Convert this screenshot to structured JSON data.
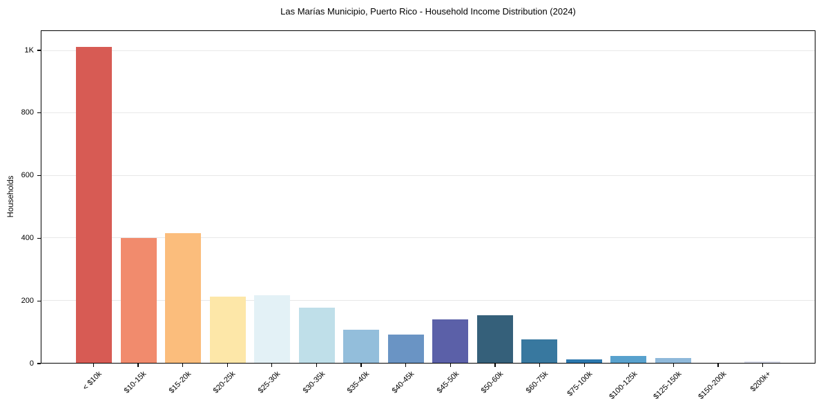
{
  "chart_data": {
    "type": "bar",
    "title": "Las Marías Municipio, Puerto Rico - Household Income Distribution (2024)",
    "xlabel": "",
    "ylabel": "Households",
    "categories": [
      "< $10k",
      "$10-15k",
      "$15-20k",
      "$20-25k",
      "$25-30k",
      "$30-35k",
      "$35-40k",
      "$40-45k",
      "$45-50k",
      "$50-60k",
      "$60-75k",
      "$75-100k",
      "$100-125k",
      "$125-150k",
      "$150-200k",
      "$200k+"
    ],
    "values": [
      1013,
      400,
      417,
      213,
      216,
      176,
      107,
      90,
      140,
      152,
      75,
      10,
      23,
      15,
      0,
      5
    ],
    "bar_colors": [
      "#d75b54",
      "#f18b6d",
      "#fbbd7c",
      "#fde7a8",
      "#e3f1f6",
      "#bfdfe9",
      "#93bedb",
      "#6a94c4",
      "#5b60a8",
      "#35607a",
      "#38789f",
      "#2b77ad",
      "#58a1cd",
      "#8fb9da",
      "#9fc4e0",
      "#d8dbe9"
    ],
    "ylim": [
      0,
      1064
    ],
    "yticks": [
      {
        "value": 0,
        "label": "0"
      },
      {
        "value": 200,
        "label": "200"
      },
      {
        "value": 400,
        "label": "400"
      },
      {
        "value": 600,
        "label": "600"
      },
      {
        "value": 800,
        "label": "800"
      },
      {
        "value": 1000,
        "label": "1K"
      }
    ],
    "grid": true,
    "legend_position": "none"
  },
  "colors": {
    "grid": "#e8e8e8",
    "spine": "#000000",
    "background": "#ffffff",
    "text": "#000000"
  }
}
